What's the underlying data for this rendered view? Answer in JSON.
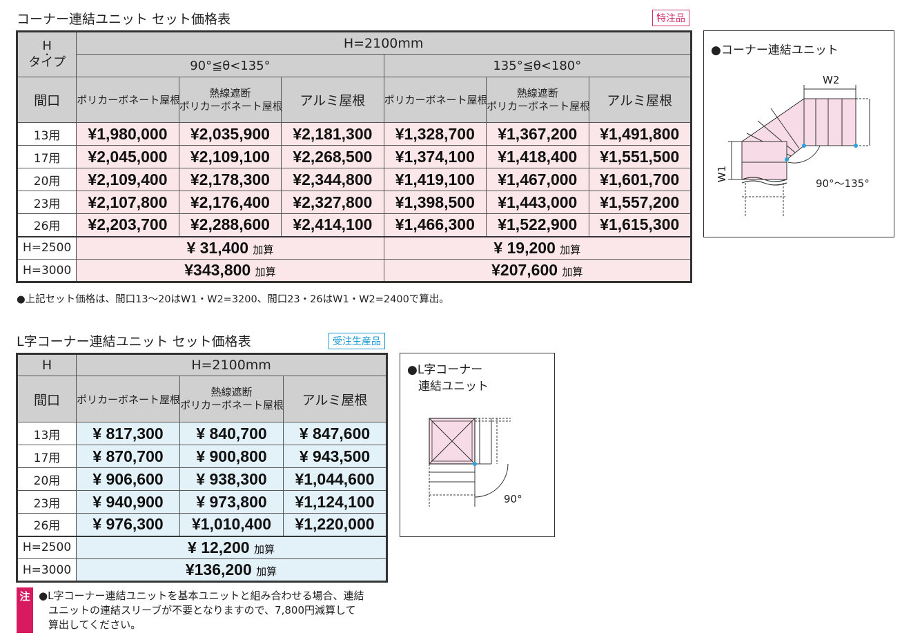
{
  "table1": {
    "title": "コーナー連結ユニット セット価格表",
    "badge": "特注品",
    "h_label_1": "H",
    "h_label_2": "・",
    "h_label_3": "タイプ",
    "h_value": "H=2100mm",
    "angle_groups": [
      "90°≦θ<135°",
      "135°≦θ<180°"
    ],
    "col_header_frontage": "間口",
    "roof_types": [
      {
        "line1": "ポリカーボネート屋根",
        "line2": ""
      },
      {
        "line1": "熱線遮断",
        "line2": "ポリカーボネート屋根"
      },
      {
        "line1": "アルミ屋根",
        "line2": ""
      },
      {
        "line1": "ポリカーボネート屋根",
        "line2": ""
      },
      {
        "line1": "熱線遮断",
        "line2": "ポリカーボネート屋根"
      },
      {
        "line1": "アルミ屋根",
        "line2": ""
      }
    ],
    "rows": [
      {
        "label": "13用",
        "cells": [
          "¥1,980,000",
          "¥2,035,900",
          "¥2,181,300",
          "¥1,328,700",
          "¥1,367,200",
          "¥1,491,800"
        ]
      },
      {
        "label": "17用",
        "cells": [
          "¥2,045,000",
          "¥2,109,100",
          "¥2,268,500",
          "¥1,374,100",
          "¥1,418,400",
          "¥1,551,500"
        ]
      },
      {
        "label": "20用",
        "cells": [
          "¥2,109,400",
          "¥2,178,300",
          "¥2,344,800",
          "¥1,419,100",
          "¥1,467,000",
          "¥1,601,700"
        ]
      },
      {
        "label": "23用",
        "cells": [
          "¥2,107,800",
          "¥2,176,400",
          "¥2,327,800",
          "¥1,398,500",
          "¥1,443,000",
          "¥1,557,200"
        ]
      },
      {
        "label": "26用",
        "cells": [
          "¥2,203,700",
          "¥2,288,600",
          "¥2,414,100",
          "¥1,466,300",
          "¥1,522,900",
          "¥1,615,300"
        ]
      }
    ],
    "extra_rows": [
      {
        "label": "H=2500",
        "values": [
          "¥ 31,400",
          "¥ 19,200"
        ],
        "suffix": "加算"
      },
      {
        "label": "H=3000",
        "values": [
          "¥343,800",
          "¥207,600"
        ],
        "suffix": "加算"
      }
    ],
    "footnote": "●上記セット価格は、間口13～20はW1・W2=3200、間口23・26はW1・W2=2400で算出。"
  },
  "diagram1": {
    "title": "●コーナー連結ユニット",
    "label_w2": "W2",
    "label_w1": "W1",
    "label_angle": "90°～135°"
  },
  "table2": {
    "title": "L字コーナー連結ユニット セット価格表",
    "badge": "受注生産品",
    "h_label": "H",
    "h_value": "H=2100mm",
    "col_header_frontage": "間口",
    "roof_types": [
      {
        "line1": "ポリカーボネート屋根",
        "line2": ""
      },
      {
        "line1": "熱線遮断",
        "line2": "ポリカーボネート屋根"
      },
      {
        "line1": "アルミ屋根",
        "line2": ""
      }
    ],
    "rows": [
      {
        "label": "13用",
        "cells": [
          "¥ 817,300",
          "¥ 840,700",
          "¥ 847,600"
        ]
      },
      {
        "label": "17用",
        "cells": [
          "¥ 870,700",
          "¥ 900,800",
          "¥ 943,500"
        ]
      },
      {
        "label": "20用",
        "cells": [
          "¥ 906,600",
          "¥ 938,300",
          "¥1,044,600"
        ]
      },
      {
        "label": "23用",
        "cells": [
          "¥ 940,900",
          "¥ 973,800",
          "¥1,124,100"
        ]
      },
      {
        "label": "26用",
        "cells": [
          "¥ 976,300",
          "¥1,010,400",
          "¥1,220,000"
        ]
      }
    ],
    "extra_rows": [
      {
        "label": "H=2500",
        "value": "¥ 12,200",
        "suffix": "加算"
      },
      {
        "label": "H=3000",
        "value": "¥136,200",
        "suffix": "加算"
      }
    ]
  },
  "diagram2": {
    "title_line1": "●L字コーナー",
    "title_line2": "連結ユニット",
    "label_angle": "90°"
  },
  "note": {
    "marker": "注",
    "line1": "●L字コーナー連結ユニットを基本ユニットと組み合わせる場合、連結",
    "line2": "ユニットの連結スリーブが不要となりますので、7,800円減算して",
    "line3": "算出してください。"
  },
  "colors": {
    "pink_cell": "#fbe7ea",
    "blue_cell": "#e3f1f8",
    "header_gray": "#d0d0d0",
    "badge_pink": "#d6336c",
    "badge_blue": "#1a9ad6",
    "note_marker": "#d81b60"
  }
}
